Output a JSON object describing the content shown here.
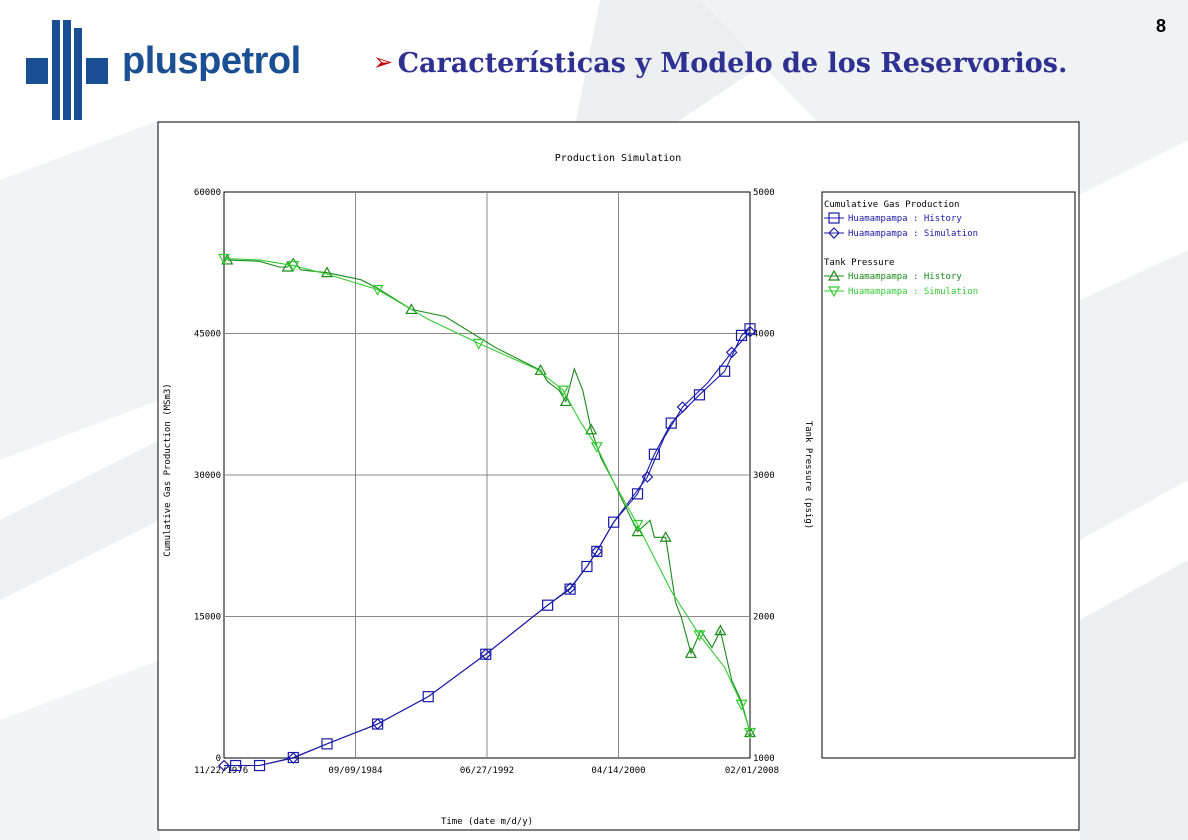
{
  "page_number": "8",
  "logo": {
    "text": "pluspetrol"
  },
  "slide": {
    "bullet": "➢",
    "title": "Características y Modelo de los Reservorios."
  },
  "colors": {
    "brand_blue": "#1b4f93",
    "title_blue": "#2e3192",
    "bullet_red": "#c00000",
    "history_gas": "#1a1aa8",
    "sim_gas": "#1a1aa8",
    "history_pressure": "#1a8a1a",
    "sim_pressure": "#33cc33"
  },
  "chart_data": {
    "type": "line",
    "title": "Production Simulation",
    "xlabel": "Time (date m/d/y)",
    "ylabel_left": "Cumulative Gas Production (MSm3)",
    "ylabel_right": "Tank Pressure (psig)",
    "x_range": [
      "1976-11-22",
      "2008-02-01"
    ],
    "x_ticks": [
      "11/22/1976",
      "09/09/1984",
      "06/27/1992",
      "04/14/2000",
      "02/01/2008"
    ],
    "ylim_left": [
      0,
      60000
    ],
    "yticks_left": [
      "60000",
      "45000",
      "30000",
      "15000",
      "0"
    ],
    "ylim_right": [
      1000,
      5000
    ],
    "yticks_right": [
      "5000",
      "4000",
      "3000",
      "2000",
      "1000"
    ],
    "grid": true,
    "legend_position": "right",
    "legend": {
      "group1": "Cumulative Gas Production",
      "group2": "Tank Pressure",
      "entries": [
        {
          "label": "Huamampampa : History",
          "marker": "square"
        },
        {
          "label": "Huamampampa : Simulation",
          "marker": "diamond"
        },
        {
          "label": "Huamampampa : History",
          "marker": "triangle-up"
        },
        {
          "label": "Huamampampa : Simulation",
          "marker": "triangle-down"
        }
      ]
    },
    "series": [
      {
        "name": "Huamampampa : History",
        "group": "Cumulative Gas Production",
        "axis": "left",
        "marker": "square",
        "points": [
          [
            "1977-08-01",
            -800
          ],
          [
            "1979-01-01",
            -800
          ],
          [
            "1981-01-01",
            50
          ],
          [
            "1983-01-01",
            1500
          ],
          [
            "1986-01-01",
            3600
          ],
          [
            "1989-01-01",
            6500
          ],
          [
            "1992-06-01",
            11000
          ],
          [
            "1996-02-01",
            16200
          ],
          [
            "1997-06-01",
            17900
          ],
          [
            "1998-06-01",
            20300
          ],
          [
            "1999-01-01",
            21900
          ],
          [
            "2000-01-01",
            25000
          ],
          [
            "2001-06-01",
            28000
          ],
          [
            "2002-06-01",
            32200
          ],
          [
            "2003-06-01",
            35500
          ],
          [
            "2005-02-01",
            38500
          ],
          [
            "2006-08-01",
            41000
          ],
          [
            "2007-08-01",
            44800
          ],
          [
            "2008-02-01",
            45500
          ]
        ]
      },
      {
        "name": "Huamampampa : Simulation",
        "group": "Cumulative Gas Production",
        "axis": "left",
        "marker": "diamond",
        "points": [
          [
            "1976-11-22",
            -800
          ],
          [
            "1979-01-01",
            -800
          ],
          [
            "1981-01-01",
            0
          ],
          [
            "1983-01-01",
            1500
          ],
          [
            "1986-01-01",
            3600
          ],
          [
            "1989-01-01",
            6500
          ],
          [
            "1992-06-01",
            11000
          ],
          [
            "1996-02-01",
            16200
          ],
          [
            "1997-06-01",
            18000
          ],
          [
            "1998-06-01",
            20300
          ],
          [
            "1999-01-01",
            21900
          ],
          [
            "2000-01-01",
            25000
          ],
          [
            "2002-01-01",
            29800
          ],
          [
            "2003-01-01",
            34000
          ],
          [
            "2004-02-01",
            37200
          ],
          [
            "2005-08-01",
            39800
          ],
          [
            "2007-01-01",
            43000
          ],
          [
            "2008-02-01",
            45200
          ]
        ]
      },
      {
        "name": "Huamampampa : History",
        "group": "Tank Pressure",
        "axis": "right",
        "marker": "triangle-up",
        "points": [
          [
            "1977-02-01",
            4520
          ],
          [
            "1979-01-01",
            4510
          ],
          [
            "1980-03-01",
            4470
          ],
          [
            "1980-09-01",
            4470
          ],
          [
            "1981-01-01",
            4530
          ],
          [
            "1981-06-01",
            4450
          ],
          [
            "1983-01-01",
            4430
          ],
          [
            "1985-01-01",
            4380
          ],
          [
            "1986-01-01",
            4320
          ],
          [
            "1988-01-01",
            4170
          ],
          [
            "1990-01-01",
            4120
          ],
          [
            "1993-01-01",
            3900
          ],
          [
            "1995-09-01",
            3740
          ],
          [
            "1996-02-01",
            3660
          ],
          [
            "1996-10-01",
            3600
          ],
          [
            "1997-03-01",
            3520
          ],
          [
            "1997-09-01",
            3750
          ],
          [
            "1998-03-01",
            3600
          ],
          [
            "1998-09-01",
            3320
          ],
          [
            "1999-04-01",
            3120
          ],
          [
            "2000-01-01",
            2950
          ],
          [
            "2001-06-01",
            2600
          ],
          [
            "2002-03-01",
            2680
          ],
          [
            "2002-06-01",
            2560
          ],
          [
            "2003-02-01",
            2560
          ],
          [
            "2003-09-01",
            2100
          ],
          [
            "2004-01-01",
            2000
          ],
          [
            "2004-08-01",
            1740
          ],
          [
            "2005-03-01",
            1900
          ],
          [
            "2005-11-01",
            1780
          ],
          [
            "2006-05-01",
            1900
          ],
          [
            "2007-01-01",
            1550
          ],
          [
            "2007-08-01",
            1400
          ],
          [
            "2008-02-01",
            1180
          ]
        ]
      },
      {
        "name": "Huamampampa : Simulation",
        "group": "Tank Pressure",
        "axis": "right",
        "marker": "triangle-down",
        "points": [
          [
            "1976-11-22",
            4530
          ],
          [
            "1979-01-01",
            4520
          ],
          [
            "1981-01-01",
            4480
          ],
          [
            "1983-01-01",
            4420
          ],
          [
            "1986-01-01",
            4310
          ],
          [
            "1989-01-01",
            4100
          ],
          [
            "1992-01-01",
            3930
          ],
          [
            "1995-06-01",
            3750
          ],
          [
            "1997-01-01",
            3600
          ],
          [
            "1998-01-01",
            3380
          ],
          [
            "1999-01-01",
            3200
          ],
          [
            "2000-01-01",
            2950
          ],
          [
            "2001-06-01",
            2650
          ],
          [
            "2003-06-01",
            2180
          ],
          [
            "2005-02-01",
            1870
          ],
          [
            "2006-08-01",
            1640
          ],
          [
            "2007-08-01",
            1380
          ],
          [
            "2008-02-01",
            1180
          ]
        ]
      }
    ]
  }
}
